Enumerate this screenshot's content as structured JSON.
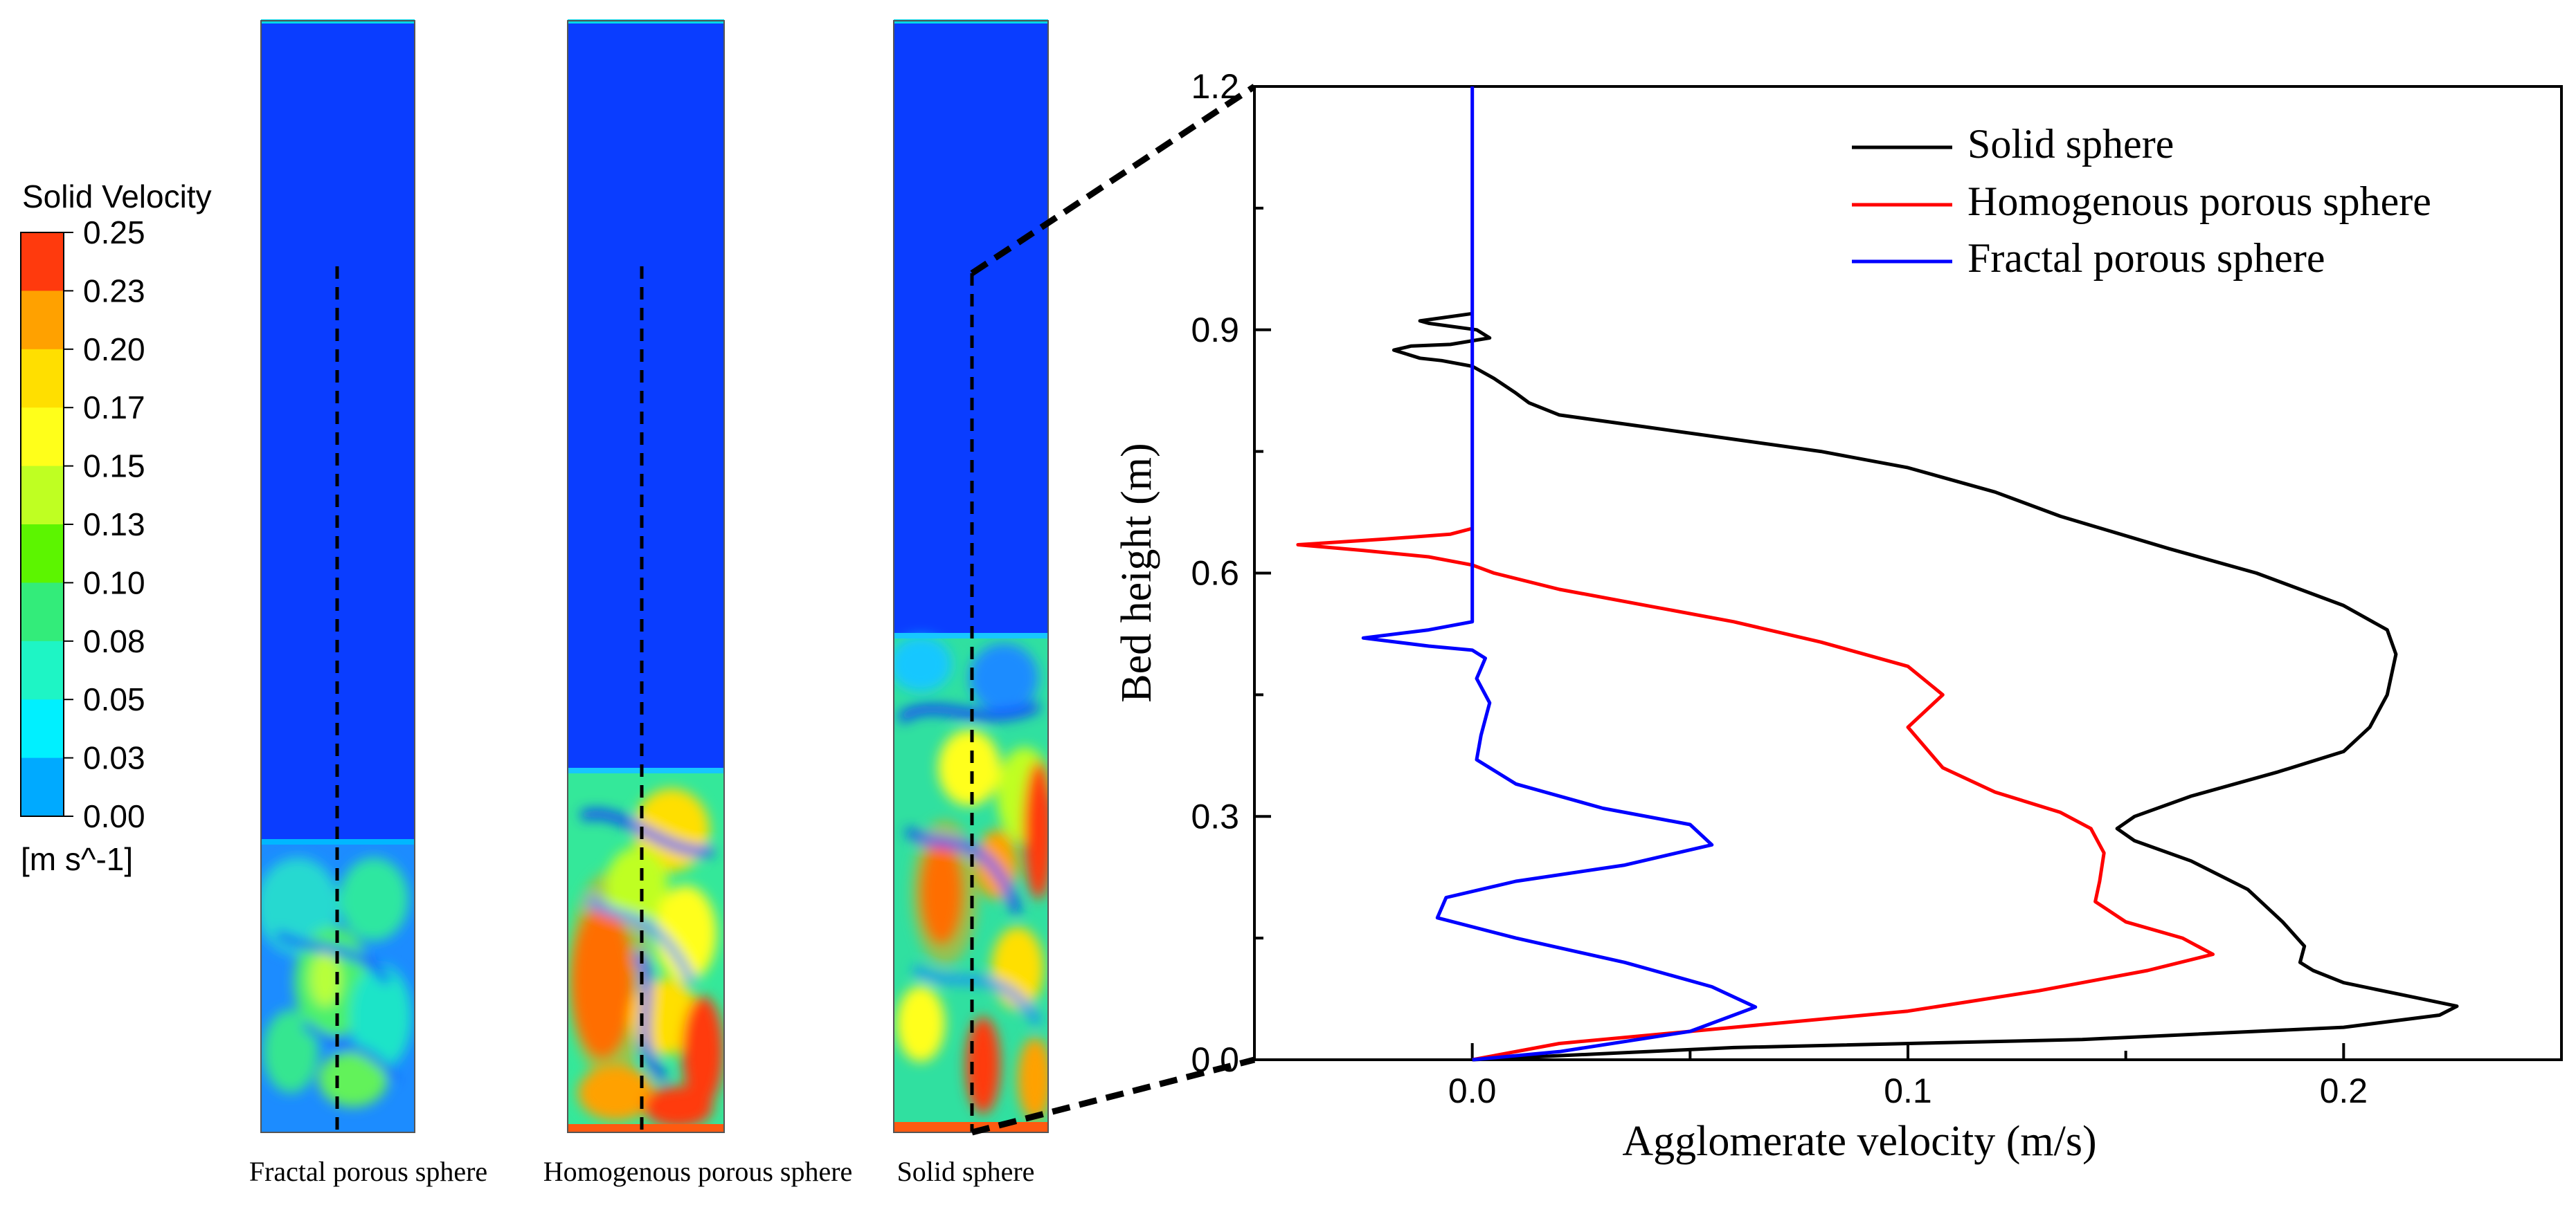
{
  "colorbar": {
    "title": "Solid Velocity",
    "unit": "[m s^-1]",
    "ticks": [
      "0.25",
      "0.23",
      "0.20",
      "0.17",
      "0.15",
      "0.13",
      "0.10",
      "0.08",
      "0.05",
      "0.03",
      "0.00"
    ],
    "colors": [
      "#ff3a0d",
      "#ffa100",
      "#ffdf00",
      "#ffff1a",
      "#bfff22",
      "#5cf500",
      "#33ec7a",
      "#1ef5c5",
      "#00f0ff",
      "#00aaff",
      "#0a4cff"
    ]
  },
  "contours": [
    {
      "label": "Fractal porous sphere",
      "bed_height_m": 0.22,
      "peak_velocity": 0.17
    },
    {
      "label": "Homogenous porous sphere",
      "bed_height_m": 0.26,
      "peak_velocity": 0.25
    },
    {
      "label": "Solid sphere",
      "bed_height_m": 0.48,
      "peak_velocity": 0.25
    }
  ],
  "chart_data": {
    "type": "line",
    "title": "",
    "xlabel": "Agglomerate velocity (m/s)",
    "ylabel": "Bed height (m)",
    "xlim": [
      -0.05,
      0.25
    ],
    "ylim": [
      0,
      1.2
    ],
    "xticks": [
      0.0,
      0.1,
      0.2
    ],
    "xtick_labels": [
      "0.0",
      "0.1",
      "0.2"
    ],
    "yticks": [
      0.0,
      0.3,
      0.6,
      0.9,
      1.2
    ],
    "ytick_labels": [
      "0.0",
      "0.3",
      "0.6",
      "0.9",
      "1.2"
    ],
    "grid": false,
    "legend_position": "top-right",
    "series": [
      {
        "name": "Solid sphere",
        "color": "#000000",
        "points": [
          [
            0.0,
            0.0
          ],
          [
            0.06,
            0.015
          ],
          [
            0.14,
            0.025
          ],
          [
            0.2,
            0.04
          ],
          [
            0.222,
            0.055
          ],
          [
            0.226,
            0.066
          ],
          [
            0.218,
            0.075
          ],
          [
            0.2,
            0.095
          ],
          [
            0.193,
            0.11
          ],
          [
            0.19,
            0.12
          ],
          [
            0.191,
            0.14
          ],
          [
            0.186,
            0.17
          ],
          [
            0.178,
            0.21
          ],
          [
            0.165,
            0.245
          ],
          [
            0.152,
            0.27
          ],
          [
            0.148,
            0.285
          ],
          [
            0.152,
            0.3
          ],
          [
            0.165,
            0.325
          ],
          [
            0.185,
            0.355
          ],
          [
            0.2,
            0.38
          ],
          [
            0.206,
            0.41
          ],
          [
            0.21,
            0.45
          ],
          [
            0.212,
            0.5
          ],
          [
            0.21,
            0.53
          ],
          [
            0.2,
            0.56
          ],
          [
            0.18,
            0.6
          ],
          [
            0.16,
            0.63
          ],
          [
            0.135,
            0.67
          ],
          [
            0.12,
            0.7
          ],
          [
            0.1,
            0.73
          ],
          [
            0.08,
            0.75
          ],
          [
            0.06,
            0.765
          ],
          [
            0.04,
            0.78
          ],
          [
            0.02,
            0.795
          ],
          [
            0.013,
            0.81
          ],
          [
            0.01,
            0.822
          ],
          [
            0.005,
            0.84
          ],
          [
            0.0,
            0.855
          ],
          [
            -0.007,
            0.862
          ],
          [
            -0.012,
            0.865
          ],
          [
            -0.018,
            0.875
          ],
          [
            -0.014,
            0.88
          ],
          [
            -0.005,
            0.882
          ],
          [
            0.004,
            0.89
          ],
          [
            0.001,
            0.9
          ],
          [
            -0.01,
            0.908
          ],
          [
            -0.012,
            0.911
          ],
          [
            0.0,
            0.92
          ]
        ]
      },
      {
        "name": "Homogenous porous sphere",
        "color": "#ff0000",
        "points": [
          [
            0.0,
            0.0
          ],
          [
            0.02,
            0.02
          ],
          [
            0.06,
            0.04
          ],
          [
            0.1,
            0.06
          ],
          [
            0.13,
            0.085
          ],
          [
            0.155,
            0.11
          ],
          [
            0.17,
            0.13
          ],
          [
            0.163,
            0.15
          ],
          [
            0.15,
            0.17
          ],
          [
            0.143,
            0.195
          ],
          [
            0.144,
            0.22
          ],
          [
            0.145,
            0.255
          ],
          [
            0.142,
            0.285
          ],
          [
            0.135,
            0.305
          ],
          [
            0.12,
            0.33
          ],
          [
            0.108,
            0.36
          ],
          [
            0.1,
            0.41
          ],
          [
            0.108,
            0.45
          ],
          [
            0.1,
            0.485
          ],
          [
            0.08,
            0.515
          ],
          [
            0.06,
            0.54
          ],
          [
            0.04,
            0.56
          ],
          [
            0.02,
            0.58
          ],
          [
            0.005,
            0.6
          ],
          [
            0.0,
            0.61
          ],
          [
            -0.01,
            0.62
          ],
          [
            -0.025,
            0.628
          ],
          [
            -0.04,
            0.635
          ],
          [
            -0.02,
            0.642
          ],
          [
            -0.005,
            0.648
          ],
          [
            0.0,
            0.655
          ]
        ]
      },
      {
        "name": "Fractal porous sphere",
        "color": "#0000ff",
        "points": [
          [
            0.0,
            0.0
          ],
          [
            0.02,
            0.01
          ],
          [
            0.05,
            0.035
          ],
          [
            0.065,
            0.065
          ],
          [
            0.055,
            0.09
          ],
          [
            0.035,
            0.12
          ],
          [
            0.01,
            0.15
          ],
          [
            -0.008,
            0.175
          ],
          [
            -0.006,
            0.2
          ],
          [
            0.01,
            0.22
          ],
          [
            0.035,
            0.24
          ],
          [
            0.055,
            0.265
          ],
          [
            0.05,
            0.29
          ],
          [
            0.03,
            0.31
          ],
          [
            0.01,
            0.34
          ],
          [
            0.001,
            0.37
          ],
          [
            0.002,
            0.4
          ],
          [
            0.004,
            0.44
          ],
          [
            0.001,
            0.47
          ],
          [
            0.003,
            0.495
          ],
          [
            0.0,
            0.505
          ],
          [
            -0.01,
            0.51
          ],
          [
            -0.025,
            0.52
          ],
          [
            -0.01,
            0.53
          ],
          [
            0.0,
            0.54
          ],
          [
            0.0,
            0.8
          ],
          [
            0.0,
            1.2
          ]
        ]
      }
    ]
  }
}
